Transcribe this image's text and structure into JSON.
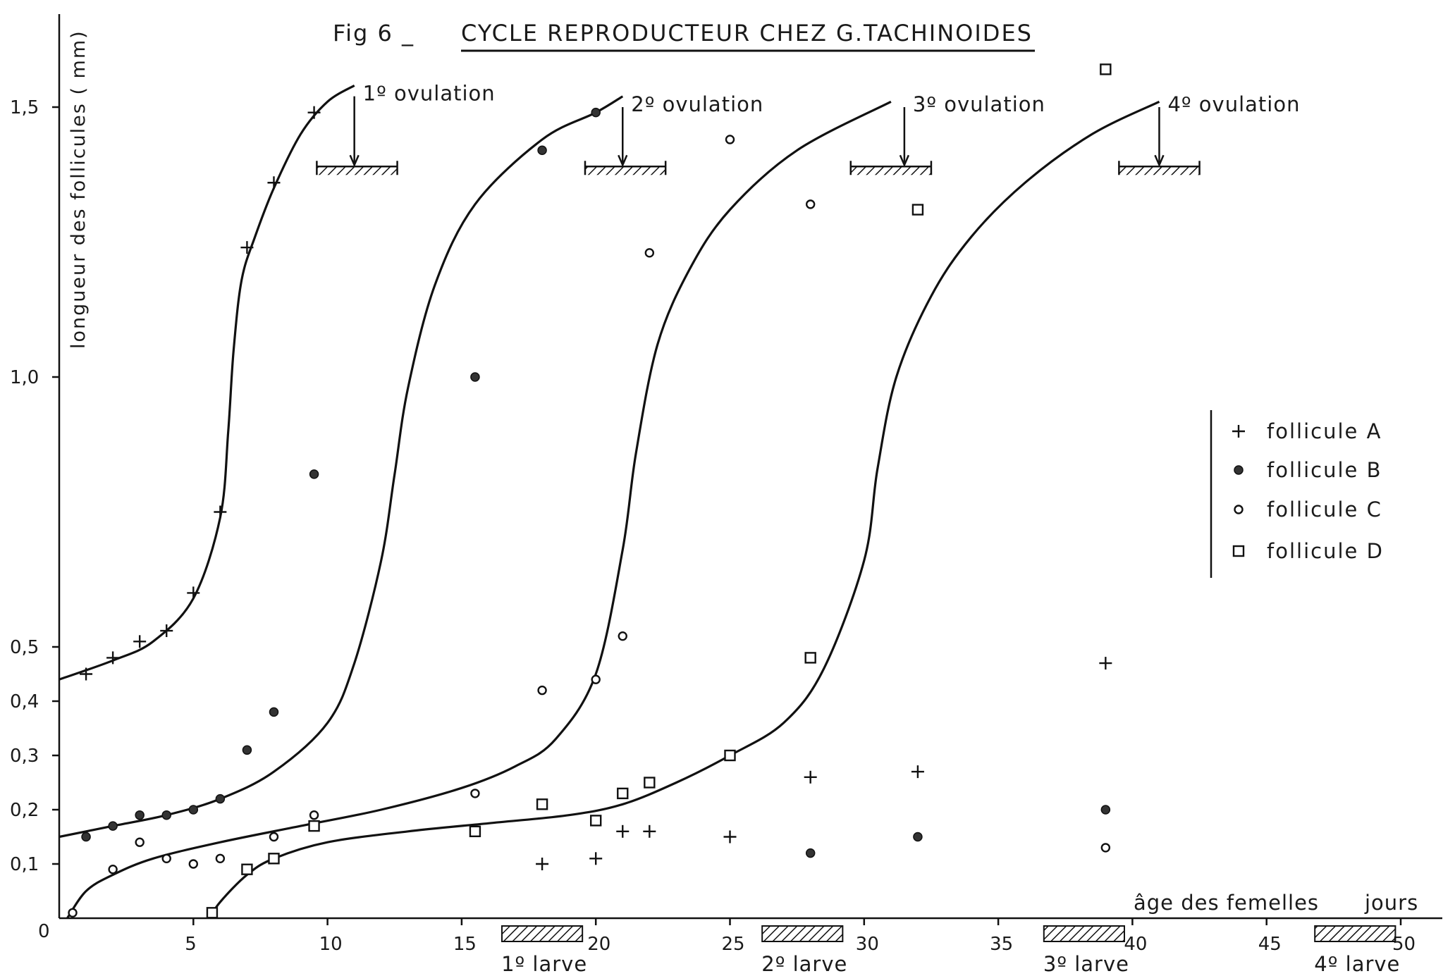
{
  "chart_data": {
    "type": "scatter",
    "title_prefix": "Fig 6 _",
    "title": "CYCLE REPRODUCTEUR CHEZ G.TACHINOIDES",
    "ylabel": "longueur des follicules ( mm)",
    "xlabel_left": "âge des femelles",
    "xlabel_right": "jours",
    "origin_label": "0",
    "xlim": [
      0,
      52
    ],
    "ylim": [
      0,
      1.6
    ],
    "x_ticks": [
      5,
      10,
      15,
      20,
      25,
      30,
      35,
      40,
      45,
      50
    ],
    "x_tick_labels": [
      "5",
      "10",
      "15",
      "20",
      "25",
      "30",
      "35",
      "40",
      "45",
      "50"
    ],
    "y_ticks": [
      0.1,
      0.2,
      0.3,
      0.4,
      0.5,
      1.0,
      1.5
    ],
    "y_tick_labels": [
      "0,1",
      "0,2",
      "0,3",
      "0,4",
      "0,5",
      "1,0",
      "1,5"
    ],
    "legend_position": "right",
    "series": [
      {
        "name": "follicule A",
        "marker": "plus",
        "points": [
          [
            1,
            0.45
          ],
          [
            2,
            0.48
          ],
          [
            3,
            0.51
          ],
          [
            4,
            0.53
          ],
          [
            5,
            0.6
          ],
          [
            6,
            0.75
          ],
          [
            7,
            1.24
          ],
          [
            8,
            1.36
          ],
          [
            9.5,
            1.49
          ],
          [
            18,
            0.1
          ],
          [
            20,
            0.11
          ],
          [
            21,
            0.16
          ],
          [
            22,
            0.16
          ],
          [
            25,
            0.15
          ],
          [
            28,
            0.26
          ],
          [
            32,
            0.27
          ],
          [
            39,
            0.47
          ]
        ]
      },
      {
        "name": "follicule B",
        "marker": "filled-circle",
        "points": [
          [
            1,
            0.15
          ],
          [
            2,
            0.17
          ],
          [
            3,
            0.19
          ],
          [
            4,
            0.19
          ],
          [
            5,
            0.2
          ],
          [
            6,
            0.22
          ],
          [
            7,
            0.31
          ],
          [
            8,
            0.38
          ],
          [
            9.5,
            0.82
          ],
          [
            15.5,
            1.0
          ],
          [
            18,
            1.42
          ],
          [
            20,
            1.49
          ],
          [
            28,
            0.12
          ],
          [
            32,
            0.15
          ],
          [
            39,
            0.2
          ]
        ]
      },
      {
        "name": "follicule C",
        "marker": "open-circle",
        "points": [
          [
            0.5,
            0.01
          ],
          [
            2,
            0.09
          ],
          [
            3,
            0.14
          ],
          [
            4,
            0.11
          ],
          [
            5,
            0.1
          ],
          [
            6,
            0.11
          ],
          [
            8,
            0.15
          ],
          [
            9.5,
            0.19
          ],
          [
            15.5,
            0.23
          ],
          [
            18,
            0.42
          ],
          [
            20,
            0.44
          ],
          [
            21,
            0.52
          ],
          [
            22,
            1.23
          ],
          [
            25,
            1.44
          ],
          [
            28,
            1.32
          ],
          [
            39,
            0.13
          ]
        ]
      },
      {
        "name": "follicule D",
        "marker": "open-square",
        "points": [
          [
            5.7,
            0.01
          ],
          [
            7,
            0.09
          ],
          [
            8,
            0.11
          ],
          [
            9.5,
            0.17
          ],
          [
            15.5,
            0.16
          ],
          [
            18,
            0.21
          ],
          [
            20,
            0.18
          ],
          [
            21,
            0.23
          ],
          [
            22,
            0.25
          ],
          [
            25,
            0.3
          ],
          [
            28,
            0.48
          ],
          [
            32,
            1.31
          ],
          [
            39,
            1.57
          ]
        ]
      }
    ],
    "curves": [
      [
        [
          0,
          0.44
        ],
        [
          2,
          0.475
        ],
        [
          3.5,
          0.51
        ],
        [
          5,
          0.59
        ],
        [
          6,
          0.74
        ],
        [
          6.3,
          0.9
        ],
        [
          6.5,
          1.05
        ],
        [
          6.8,
          1.18
        ],
        [
          7.3,
          1.26
        ],
        [
          8,
          1.35
        ],
        [
          9,
          1.45
        ],
        [
          10,
          1.51
        ],
        [
          11,
          1.54
        ]
      ],
      [
        [
          0,
          0.15
        ],
        [
          2,
          0.17
        ],
        [
          4,
          0.19
        ],
        [
          6,
          0.22
        ],
        [
          8,
          0.27
        ],
        [
          10,
          0.36
        ],
        [
          11,
          0.47
        ],
        [
          12,
          0.66
        ],
        [
          12.5,
          0.82
        ],
        [
          13,
          0.98
        ],
        [
          14,
          1.17
        ],
        [
          15.5,
          1.32
        ],
        [
          18,
          1.44
        ],
        [
          20,
          1.49
        ],
        [
          21,
          1.52
        ]
      ],
      [
        [
          0.3,
          0.0
        ],
        [
          1,
          0.05
        ],
        [
          2,
          0.08
        ],
        [
          3.5,
          0.11
        ],
        [
          6,
          0.14
        ],
        [
          9,
          0.17
        ],
        [
          12,
          0.2
        ],
        [
          15,
          0.24
        ],
        [
          17,
          0.28
        ],
        [
          18.5,
          0.33
        ],
        [
          20,
          0.45
        ],
        [
          21,
          0.68
        ],
        [
          21.5,
          0.86
        ],
        [
          22.3,
          1.06
        ],
        [
          23.5,
          1.2
        ],
        [
          25,
          1.31
        ],
        [
          27.5,
          1.42
        ],
        [
          31,
          1.51
        ]
      ],
      [
        [
          5.6,
          0.0
        ],
        [
          6,
          0.03
        ],
        [
          7,
          0.08
        ],
        [
          8,
          0.11
        ],
        [
          10,
          0.14
        ],
        [
          13,
          0.16
        ],
        [
          16,
          0.175
        ],
        [
          19,
          0.19
        ],
        [
          21,
          0.21
        ],
        [
          23,
          0.25
        ],
        [
          25,
          0.3
        ],
        [
          27,
          0.36
        ],
        [
          28.5,
          0.46
        ],
        [
          30,
          0.66
        ],
        [
          30.5,
          0.83
        ],
        [
          31.2,
          1.0
        ],
        [
          32.5,
          1.15
        ],
        [
          34,
          1.26
        ],
        [
          36,
          1.36
        ],
        [
          38.5,
          1.45
        ],
        [
          41,
          1.51
        ]
      ]
    ],
    "annotations": [
      {
        "text": "1º ovulation",
        "arrow_x": 11,
        "arrow_y_top": 1.52,
        "arrow_y_bottom": 1.39,
        "bar_x": [
          9.6,
          12.6
        ],
        "bar_y": 1.39
      },
      {
        "text": "2º ovulation",
        "arrow_x": 21,
        "arrow_y_top": 1.5,
        "arrow_y_bottom": 1.39,
        "bar_x": [
          19.6,
          22.6
        ],
        "bar_y": 1.39
      },
      {
        "text": "3º ovulation",
        "arrow_x": 31.5,
        "arrow_y_top": 1.5,
        "arrow_y_bottom": 1.39,
        "bar_x": [
          29.5,
          32.5
        ],
        "bar_y": 1.39
      },
      {
        "text": "4º ovulation",
        "arrow_x": 41,
        "arrow_y_top": 1.5,
        "arrow_y_bottom": 1.39,
        "bar_x": [
          39.5,
          42.5
        ],
        "bar_y": 1.39
      }
    ],
    "larva_periods": [
      {
        "label": "1º larve",
        "x_range": [
          16.5,
          19.5
        ]
      },
      {
        "label": "2º larve",
        "x_range": [
          26.2,
          29.2
        ]
      },
      {
        "label": "3º larve",
        "x_range": [
          36.7,
          39.7
        ]
      },
      {
        "label": "4º larve",
        "x_range": [
          46.8,
          49.8
        ]
      }
    ]
  }
}
